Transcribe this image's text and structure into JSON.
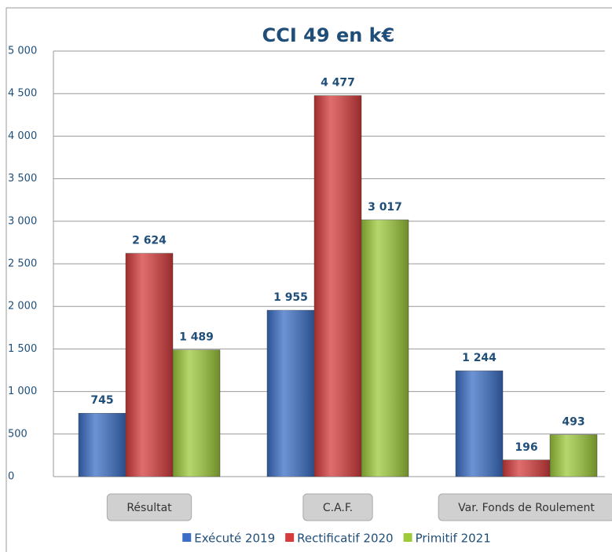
{
  "chart_data": {
    "type": "bar",
    "title": "CCI 49 en k€",
    "categories": [
      "Résultat",
      "C.A.F.",
      "Var. Fonds de Roulement"
    ],
    "series": [
      {
        "name": "Exécuté 2019",
        "color": "#3b6fc6",
        "values": [
          745,
          1955,
          1244
        ],
        "value_labels": [
          "745",
          "1 955",
          "1 244"
        ]
      },
      {
        "name": "Rectificatif 2020",
        "color": "#d63c3c",
        "values": [
          2624,
          4477,
          196
        ],
        "value_labels": [
          "2 624",
          "4 477",
          "196"
        ]
      },
      {
        "name": "Primitif 2021",
        "color": "#9dc93b",
        "values": [
          1489,
          3017,
          493
        ],
        "value_labels": [
          "1 489",
          "3 017",
          "493"
        ]
      }
    ],
    "ylim": [
      0,
      5000
    ],
    "yticks": [
      0,
      500,
      {
        "value": 1000,
        "label": "1 000"
      },
      {
        "value": 1500,
        "label": "1 500"
      },
      {
        "value": 2000,
        "label": "2 000"
      },
      {
        "value": 2500,
        "label": "2 500"
      },
      {
        "value": 3000,
        "label": "3 000"
      },
      {
        "value": 3500,
        "label": "3 500"
      },
      {
        "value": 4000,
        "label": "4 000"
      },
      {
        "value": 4500,
        "label": "4 500"
      },
      {
        "value": 5000,
        "label": "5 000"
      }
    ],
    "grid": true,
    "legend": "bottom"
  }
}
